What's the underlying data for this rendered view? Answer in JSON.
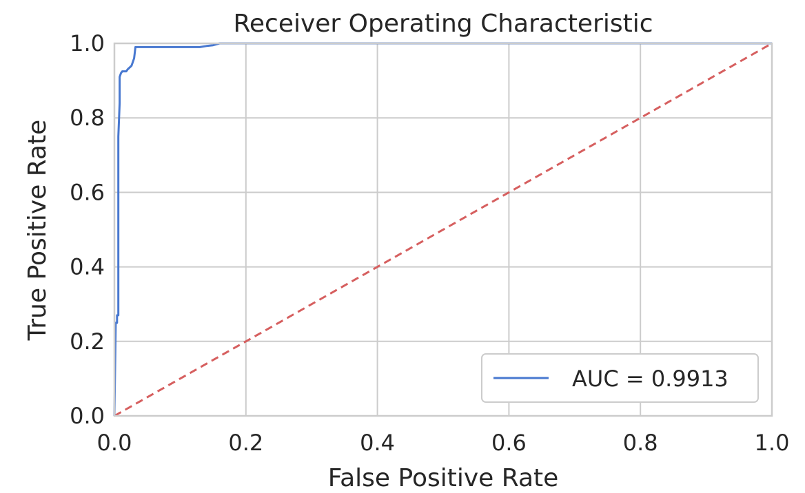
{
  "chart_data": {
    "type": "line",
    "title": "Receiver Operating Characteristic",
    "xlabel": "False Positive Rate",
    "ylabel": "True Positive Rate",
    "xlim": [
      0,
      1
    ],
    "ylim": [
      0,
      1
    ],
    "x_ticks": [
      "0.0",
      "0.2",
      "0.4",
      "0.6",
      "0.8",
      "1.0"
    ],
    "y_ticks": [
      "0.0",
      "0.2",
      "0.4",
      "0.6",
      "0.8",
      "1.0"
    ],
    "grid": true,
    "legend_position": "lower-right",
    "series": [
      {
        "name": "AUC = 0.9913",
        "color": "#4878d0",
        "style": "solid",
        "x": [
          0.0,
          0.002,
          0.004,
          0.004,
          0.006,
          0.006,
          0.008,
          0.008,
          0.01,
          0.012,
          0.018,
          0.02,
          0.026,
          0.028,
          0.03,
          0.032,
          0.04,
          0.06,
          0.1,
          0.13,
          0.14,
          0.15,
          0.16,
          0.2,
          0.4,
          0.6,
          0.8,
          1.0
        ],
        "y": [
          0.0,
          0.25,
          0.25,
          0.27,
          0.27,
          0.75,
          0.84,
          0.91,
          0.92,
          0.925,
          0.925,
          0.93,
          0.94,
          0.95,
          0.96,
          0.99,
          0.99,
          0.99,
          0.99,
          0.99,
          0.993,
          0.995,
          1.0,
          1.0,
          1.0,
          1.0,
          1.0,
          1.0
        ]
      },
      {
        "name": "",
        "color": "#d65f5f",
        "style": "dashed",
        "x": [
          0.0,
          1.0
        ],
        "y": [
          0.0,
          1.0
        ]
      }
    ]
  }
}
